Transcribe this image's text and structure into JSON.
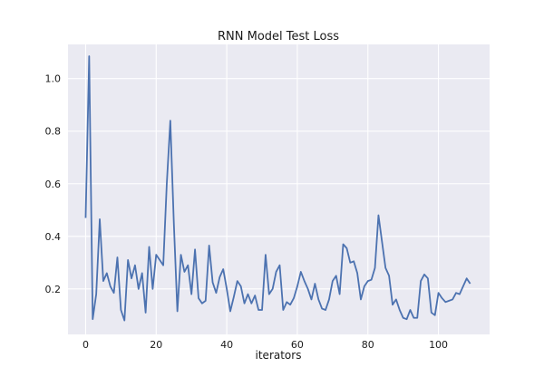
{
  "chart_data": {
    "type": "line",
    "title": "RNN Model Test Loss",
    "xlabel": "iterators",
    "ylabel": "",
    "xlim": [
      -5,
      114.5
    ],
    "ylim": [
      0.027,
      1.13
    ],
    "xticks": [
      0,
      20,
      40,
      60,
      80,
      100
    ],
    "yticks": [
      0.2,
      0.4,
      0.6,
      0.8,
      1.0
    ],
    "xtick_labels": [
      "0",
      "20",
      "40",
      "60",
      "80",
      "100"
    ],
    "ytick_labels": [
      "0.2",
      "0.4",
      "0.6",
      "0.8",
      "1.0"
    ],
    "grid": true,
    "legend": null,
    "series": [
      {
        "color": "#4c72b0",
        "x": [
          0,
          1,
          2,
          3,
          4,
          5,
          6,
          7,
          8,
          9,
          10,
          11,
          12,
          13,
          14,
          15,
          16,
          17,
          18,
          19,
          20,
          21,
          22,
          23,
          24,
          25,
          26,
          27,
          28,
          29,
          30,
          31,
          32,
          33,
          34,
          35,
          36,
          37,
          38,
          39,
          40,
          41,
          42,
          43,
          44,
          45,
          46,
          47,
          48,
          49,
          50,
          51,
          52,
          53,
          54,
          55,
          56,
          57,
          58,
          59,
          60,
          61,
          62,
          63,
          64,
          65,
          66,
          67,
          68,
          69,
          70,
          71,
          72,
          73,
          74,
          75,
          76,
          77,
          78,
          79,
          80,
          81,
          82,
          83,
          84,
          85,
          86,
          87,
          88,
          89,
          90,
          91,
          92,
          93,
          94,
          95,
          96,
          97,
          98,
          99,
          100,
          101,
          102,
          103,
          104,
          105,
          106,
          107,
          108,
          109
        ],
        "values": [
          0.47,
          1.085,
          0.085,
          0.18,
          0.465,
          0.23,
          0.26,
          0.21,
          0.185,
          0.32,
          0.12,
          0.08,
          0.31,
          0.24,
          0.29,
          0.2,
          0.26,
          0.11,
          0.36,
          0.2,
          0.33,
          0.31,
          0.29,
          0.6,
          0.84,
          0.45,
          0.115,
          0.33,
          0.265,
          0.29,
          0.18,
          0.35,
          0.165,
          0.145,
          0.155,
          0.365,
          0.225,
          0.185,
          0.245,
          0.275,
          0.2,
          0.115,
          0.17,
          0.23,
          0.21,
          0.145,
          0.18,
          0.145,
          0.175,
          0.12,
          0.12,
          0.33,
          0.18,
          0.2,
          0.265,
          0.29,
          0.12,
          0.15,
          0.14,
          0.165,
          0.21,
          0.265,
          0.23,
          0.2,
          0.16,
          0.22,
          0.16,
          0.125,
          0.12,
          0.16,
          0.23,
          0.25,
          0.18,
          0.37,
          0.355,
          0.3,
          0.305,
          0.26,
          0.16,
          0.21,
          0.23,
          0.235,
          0.28,
          0.48,
          0.38,
          0.28,
          0.25,
          0.14,
          0.16,
          0.12,
          0.09,
          0.085,
          0.12,
          0.09,
          0.09,
          0.23,
          0.255,
          0.24,
          0.11,
          0.1,
          0.185,
          0.165,
          0.15,
          0.155,
          0.16,
          0.185,
          0.18,
          0.21,
          0.24,
          0.22
        ]
      }
    ]
  }
}
